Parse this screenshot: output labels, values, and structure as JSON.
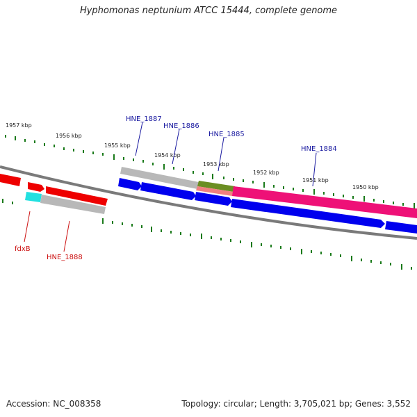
{
  "title": "Hyphomonas neptunium ATCC 15444, complete genome",
  "footer": {
    "accession": "Accession: NC_008358",
    "summary": "Topology: circular; Length: 3,705,021 bp; Genes: 3,552"
  },
  "colors": {
    "backbone": "#7a7a7a",
    "tick": "#1a7a1a",
    "forward_label": "#1a1aa0",
    "reverse_label": "#cc1111",
    "gene_blue": "#0000ee",
    "gene_red": "#ee0000",
    "gene_grey": "#b8b8b8",
    "gene_magenta": "#ee1177",
    "gene_cyan": "#22e0e0",
    "gene_olive": "#6b8e23",
    "gene_salmon": "#f08080"
  },
  "ruler": {
    "tick_labels": [
      "1957 kbp",
      "1956 kbp",
      "1955 kbp",
      "1954 kbp",
      "1953 kbp",
      "1952 kbp",
      "1951 kbp",
      "1950 kbp"
    ]
  },
  "gene_labels": {
    "forward": [
      "HNE_1887",
      "HNE_1886",
      "HNE_1885",
      "HNE_1884"
    ],
    "reverse": [
      "fdxB",
      "HNE_1888"
    ]
  }
}
